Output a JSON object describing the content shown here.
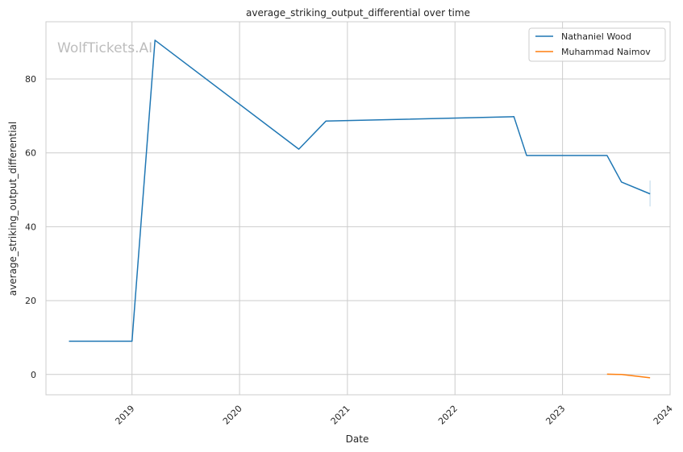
{
  "chart_data": {
    "type": "line",
    "title": "average_striking_output_differential over time",
    "xlabel": "Date",
    "ylabel": "average_striking_output_differential",
    "watermark": "WolfTickets.AI",
    "x_ticks": [
      "2019",
      "2020",
      "2021",
      "2022",
      "2023",
      "2024"
    ],
    "y_ticks": [
      0,
      20,
      40,
      60,
      80
    ],
    "xlim": [
      "2018-03-15",
      "2024-01-01"
    ],
    "ylim": [
      -5.5,
      95.5
    ],
    "grid": true,
    "legend_position": "top-right",
    "series": [
      {
        "name": "Nathaniel Wood",
        "color": "#1f77b4",
        "points": [
          {
            "x": "2018-06-01",
            "y": 9.0
          },
          {
            "x": "2019-01-01",
            "y": 9.0
          },
          {
            "x": "2019-03-20",
            "y": 90.5
          },
          {
            "x": "2020-07-20",
            "y": 61.0
          },
          {
            "x": "2020-10-20",
            "y": 68.6
          },
          {
            "x": "2022-07-20",
            "y": 69.8
          },
          {
            "x": "2022-09-01",
            "y": 59.3
          },
          {
            "x": "2023-06-01",
            "y": 59.3
          },
          {
            "x": "2023-07-20",
            "y": 52.1
          },
          {
            "x": "2023-10-25",
            "y": 48.9
          }
        ],
        "error_bar": {
          "x": "2023-10-25",
          "low": 45.5,
          "high": 52.5
        }
      },
      {
        "name": "Muhammad Naimov",
        "color": "#ff7f0e",
        "points": [
          {
            "x": "2023-06-01",
            "y": 0.1
          },
          {
            "x": "2023-07-20",
            "y": 0.0
          },
          {
            "x": "2023-10-25",
            "y": -0.9
          }
        ]
      }
    ]
  }
}
